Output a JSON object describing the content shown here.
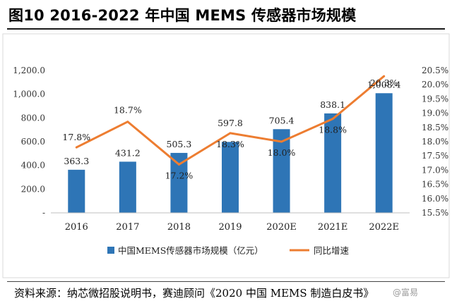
{
  "title": "图10 2016-2022 年中国 MEMS 传感器市场规模",
  "source": "资料来源：纳芯微招股说明书，赛迪顾问《2020 中国 MEMS 制造白皮书》",
  "watermark": "@富易",
  "chart_data": {
    "type": "bar+line",
    "categories": [
      "2016",
      "2017",
      "2018",
      "2019",
      "2020E",
      "2021E",
      "2022E"
    ],
    "series": [
      {
        "name": "中国MEMS传感器市场规模（亿元）",
        "type": "bar",
        "axis": "left",
        "values": [
          363.3,
          431.2,
          505.3,
          597.8,
          705.4,
          838.1,
          1008.4
        ],
        "labels": [
          "363.3",
          "431.2",
          "505.3",
          "597.8",
          "705.4",
          "838.1",
          "1,008.4"
        ],
        "color": "#2e75b6"
      },
      {
        "name": "同比增速",
        "type": "line",
        "axis": "right",
        "values": [
          17.8,
          18.7,
          17.2,
          18.3,
          18.0,
          18.8,
          20.3
        ],
        "labels": [
          "17.8%",
          "18.7%",
          "17.2%",
          "18.3%",
          "18.0%",
          "18.8%",
          "20.3%"
        ],
        "color": "#ed7d31"
      }
    ],
    "y_left": {
      "min": 0,
      "max": 1200,
      "ticks": [
        {
          "value": 0,
          "label": "-"
        },
        {
          "value": 200,
          "label": "200.0"
        },
        {
          "value": 400,
          "label": "400.0"
        },
        {
          "value": 600,
          "label": "600.0"
        },
        {
          "value": 800,
          "label": "800.0"
        },
        {
          "value": 1000,
          "label": "1,000.0"
        },
        {
          "value": 1200,
          "label": "1,200.0"
        }
      ]
    },
    "y_right": {
      "min": 15.5,
      "max": 20.5,
      "ticks": [
        {
          "value": 15.5,
          "label": "15.5%"
        },
        {
          "value": 16.0,
          "label": "16.0%"
        },
        {
          "value": 16.5,
          "label": "16.5%"
        },
        {
          "value": 17.0,
          "label": "17.0%"
        },
        {
          "value": 17.5,
          "label": "17.5%"
        },
        {
          "value": 18.0,
          "label": "18.0%"
        },
        {
          "value": 18.5,
          "label": "18.5%"
        },
        {
          "value": 19.0,
          "label": "19.0%"
        },
        {
          "value": 19.5,
          "label": "19.5%"
        },
        {
          "value": 20.0,
          "label": "20.0%"
        },
        {
          "value": 20.5,
          "label": "20.5%"
        }
      ]
    },
    "legend_position": "bottom-center",
    "grid": false
  }
}
